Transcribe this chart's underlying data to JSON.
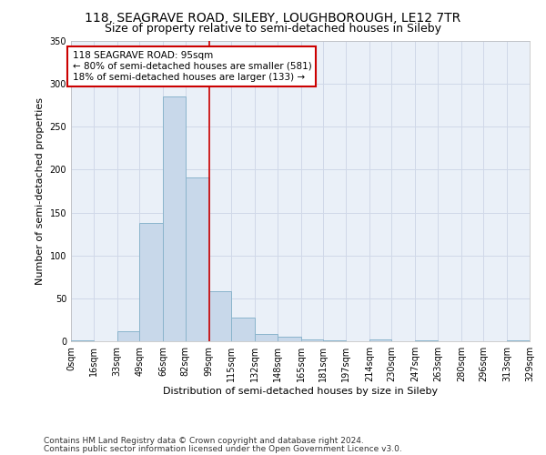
{
  "title1": "118, SEAGRAVE ROAD, SILEBY, LOUGHBOROUGH, LE12 7TR",
  "title2": "Size of property relative to semi-detached houses in Sileby",
  "xlabel": "Distribution of semi-detached houses by size in Sileby",
  "ylabel": "Number of semi-detached properties",
  "bar_color": "#c8d8ea",
  "bar_edge_color": "#8ab4cc",
  "vline_color": "#cc0000",
  "vline_x": 99,
  "annotation_text": "118 SEAGRAVE ROAD: 95sqm\n← 80% of semi-detached houses are smaller (581)\n18% of semi-detached houses are larger (133) →",
  "annotation_box_color": "#ffffff",
  "annotation_box_edge": "#cc0000",
  "bins": [
    0,
    16,
    33,
    49,
    66,
    82,
    99,
    115,
    132,
    148,
    165,
    181,
    197,
    214,
    230,
    247,
    263,
    280,
    296,
    313,
    329
  ],
  "bin_values": [
    1,
    0,
    12,
    138,
    285,
    191,
    58,
    28,
    9,
    5,
    2,
    1,
    0,
    2,
    0,
    1,
    0,
    0,
    0,
    1
  ],
  "tick_labels": [
    "0sqm",
    "16sqm",
    "33sqm",
    "49sqm",
    "66sqm",
    "82sqm",
    "99sqm",
    "115sqm",
    "132sqm",
    "148sqm",
    "165sqm",
    "181sqm",
    "197sqm",
    "214sqm",
    "230sqm",
    "247sqm",
    "263sqm",
    "280sqm",
    "296sqm",
    "313sqm",
    "329sqm"
  ],
  "ylim": [
    0,
    350
  ],
  "yticks": [
    0,
    50,
    100,
    150,
    200,
    250,
    300,
    350
  ],
  "grid_color": "#d0d8e8",
  "background_color": "#eaf0f8",
  "footer1": "Contains HM Land Registry data © Crown copyright and database right 2024.",
  "footer2": "Contains public sector information licensed under the Open Government Licence v3.0.",
  "title_fontsize": 10,
  "subtitle_fontsize": 9,
  "label_fontsize": 8,
  "tick_fontsize": 7,
  "footer_fontsize": 6.5,
  "annot_fontsize": 7.5
}
